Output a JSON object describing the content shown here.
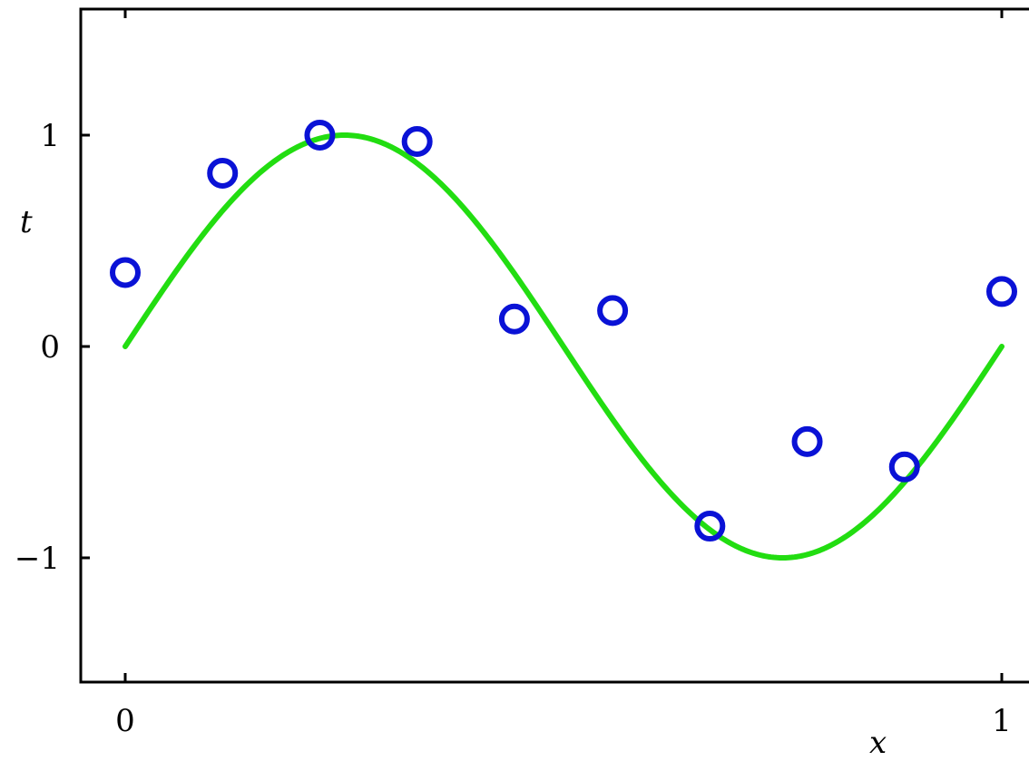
{
  "chart_data": {
    "type": "scatter",
    "xlabel": "x",
    "ylabel": "t",
    "xlim": [
      -0.05,
      1.05
    ],
    "ylim": [
      -1.6,
      1.6
    ],
    "x_ticks": [
      0,
      1
    ],
    "x_tick_labels": [
      "0",
      "1"
    ],
    "y_ticks": [
      -1,
      0,
      1
    ],
    "y_tick_labels": [
      "−1",
      "0",
      "1"
    ],
    "grid": false,
    "series": [
      {
        "kind": "line",
        "color": "#22dd11",
        "function": "sin(2*pi*x)",
        "x_range": [
          0,
          1
        ]
      },
      {
        "kind": "points",
        "color": "#0a12d6",
        "marker": "open-circle",
        "x": [
          0.0,
          0.111,
          0.222,
          0.333,
          0.444,
          0.556,
          0.667,
          0.778,
          0.889,
          1.0
        ],
        "y": [
          0.35,
          0.82,
          1.0,
          0.97,
          0.13,
          0.17,
          -0.85,
          -0.45,
          -0.57,
          0.26
        ]
      }
    ]
  }
}
